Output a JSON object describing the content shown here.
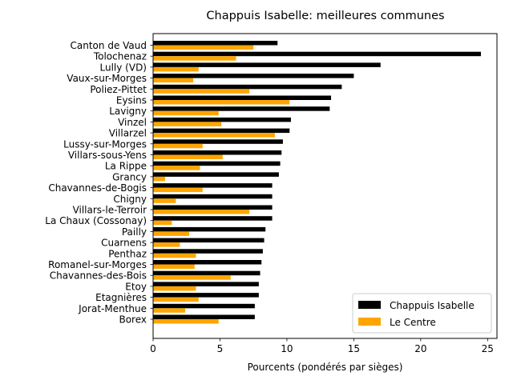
{
  "chart_data": {
    "type": "bar",
    "orientation": "horizontal",
    "title": "Chappuis Isabelle: meilleures communes",
    "xlabel": "Pourcents (pondérés par sièges)",
    "ylabel": "",
    "xlim": [
      0,
      25.7
    ],
    "xticks": [
      "0",
      "5",
      "10",
      "15",
      "20",
      "25"
    ],
    "grid": false,
    "legend_position": "lower right",
    "categories": [
      "Canton de Vaud",
      "Tolochenaz",
      "Lully (VD)",
      "Vaux-sur-Morges",
      "Poliez-Pittet",
      "Eysins",
      "Lavigny",
      "Vinzel",
      "Villarzel",
      "Lussy-sur-Morges",
      "Villars-sous-Yens",
      "La Rippe",
      "Grancy",
      "Chavannes-de-Bogis",
      "Chigny",
      "Villars-le-Terroir",
      "La Chaux (Cossonay)",
      "Pailly",
      "Cuarnens",
      "Penthaz",
      "Romanel-sur-Morges",
      "Chavannes-des-Bois",
      "Etoy",
      "Etagnières",
      "Jorat-Menthue",
      "Borex"
    ],
    "series": [
      {
        "name": "Chappuis Isabelle",
        "color": "#000000",
        "values": [
          9.3,
          24.5,
          17.0,
          15.0,
          14.1,
          13.3,
          13.2,
          10.3,
          10.2,
          9.7,
          9.6,
          9.5,
          9.4,
          8.9,
          8.9,
          8.9,
          8.9,
          8.4,
          8.3,
          8.2,
          8.1,
          8.0,
          7.9,
          7.9,
          7.6,
          7.6
        ]
      },
      {
        "name": "Le Centre",
        "color": "#ffa500",
        "values": [
          7.5,
          6.2,
          3.4,
          3.0,
          7.2,
          10.2,
          4.9,
          5.1,
          9.1,
          3.7,
          5.2,
          3.5,
          0.9,
          3.7,
          1.7,
          7.2,
          1.4,
          2.7,
          2.0,
          3.2,
          3.1,
          5.8,
          3.2,
          3.4,
          2.4,
          4.9
        ]
      }
    ]
  }
}
